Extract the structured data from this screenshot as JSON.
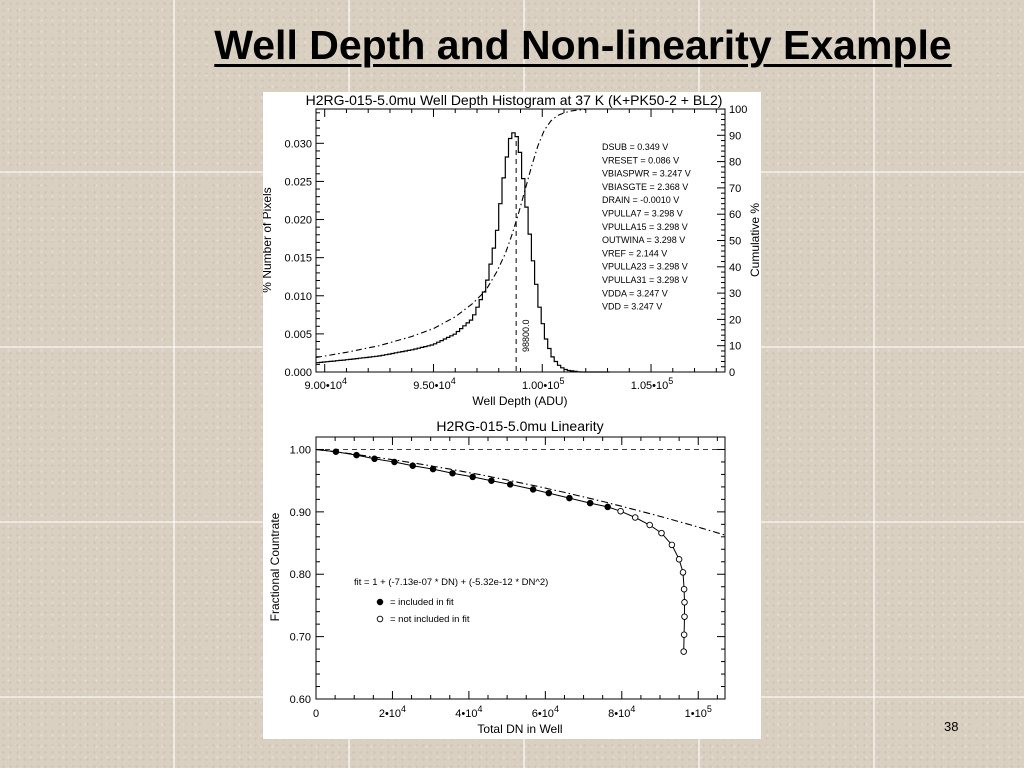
{
  "slide": {
    "title": "Well Depth and Non-linearity Example",
    "page_number": "38"
  },
  "chart_data": [
    {
      "type": "line",
      "title": "H2RG-015-5.0mu Well Depth Histogram at 37 K (K+PK50-2 + BL2)",
      "xlabel": "Well Depth (ADU)",
      "ylabel": "% Number of Pixels",
      "y2label": "Cumulative %",
      "xlim": [
        89600,
        108400
      ],
      "ylim": [
        0,
        0.0345
      ],
      "y2lim": [
        0,
        100
      ],
      "x_ticks": [
        {
          "value": 90000,
          "base": "9.00•10",
          "exp": "4"
        },
        {
          "value": 95000,
          "base": "9.50•10",
          "exp": "4"
        },
        {
          "value": 100000,
          "base": "1.00•10",
          "exp": "5"
        },
        {
          "value": 105000,
          "base": "1.05•10",
          "exp": "5"
        }
      ],
      "y_ticks": [
        "0.000",
        "0.005",
        "0.010",
        "0.015",
        "0.020",
        "0.025",
        "0.030"
      ],
      "y2_ticks": [
        "0",
        "10",
        "20",
        "30",
        "40",
        "50",
        "60",
        "70",
        "80",
        "90",
        "100"
      ],
      "histogram": {
        "x": [
          89600,
          91000,
          92500,
          94000,
          95000,
          96000,
          96800,
          97400,
          97900,
          98200,
          98500,
          98700,
          98900,
          99100,
          99300,
          99600,
          99900,
          100200,
          100500,
          100800,
          101000,
          101200,
          101500,
          101700
        ],
        "y": [
          0.0012,
          0.0016,
          0.0021,
          0.0029,
          0.0036,
          0.005,
          0.007,
          0.011,
          0.018,
          0.025,
          0.0305,
          0.0315,
          0.0305,
          0.026,
          0.021,
          0.014,
          0.008,
          0.004,
          0.0018,
          0.0008,
          0.0004,
          0.0002,
          0.0001,
          0.0
        ]
      },
      "cumulative": {
        "x": [
          89600,
          91000,
          92500,
          94000,
          95000,
          96000,
          96800,
          97400,
          97900,
          98300,
          98600,
          98900,
          99200,
          99500,
          99800,
          100100,
          100400,
          100700,
          101000,
          101300,
          101600,
          102000
        ],
        "y": [
          5.5,
          7.5,
          10.0,
          13.5,
          16.5,
          21.0,
          26.0,
          31.0,
          38.0,
          45.0,
          52.0,
          60.0,
          69.0,
          78.0,
          86.0,
          92.0,
          95.5,
          97.5,
          98.5,
          99.2,
          99.6,
          99.8
        ]
      },
      "marker": {
        "x": 98800,
        "label": "98800.0"
      },
      "parameters": [
        "DSUB = 0.349 V",
        "VRESET = 0.086 V",
        "VBIASPWR = 3.247 V",
        "VBIASGTE = 2.368 V",
        "DRAIN = -0.0010 V",
        "VPULLA7 = 3.298 V",
        "VPULLA15 = 3.298 V",
        "OUTWINA = 3.298 V",
        "VREF = 2.144 V",
        "VPULLA23 = 3.298 V",
        "VPULLA31 = 3.298 V",
        "VDDA = 3.247 V",
        "VDD = 3.247 V"
      ]
    },
    {
      "type": "scatter",
      "title": "H2RG-015-5.0mu Linearity",
      "xlabel": "Total DN in Well",
      "ylabel": "Fractional Countrate",
      "xlim": [
        0,
        107000
      ],
      "ylim": [
        0.6,
        1.02
      ],
      "x_ticks": [
        {
          "value": 0,
          "base": "0",
          "exp": ""
        },
        {
          "value": 20000,
          "base": "2•10",
          "exp": "4"
        },
        {
          "value": 40000,
          "base": "4•10",
          "exp": "4"
        },
        {
          "value": 60000,
          "base": "6•10",
          "exp": "4"
        },
        {
          "value": 80000,
          "base": "8•10",
          "exp": "4"
        },
        {
          "value": 100000,
          "base": "1•10",
          "exp": "5"
        }
      ],
      "y_ticks": [
        "1.00",
        "0.90",
        "0.80",
        "0.70",
        "0.60"
      ],
      "reference_y": 1.0,
      "fit": {
        "a": -7.13e-07,
        "b": -5.32e-12,
        "xmax": 107000
      },
      "fit_label": "fit = 1 + (-7.13e-07 * DN) + (-5.32e-12 * DN^2)",
      "legend": {
        "included": "= included in fit",
        "excluded": "= not included in fit"
      },
      "included": {
        "x": [
          5200,
          10600,
          15300,
          20500,
          25300,
          30600,
          35700,
          41000,
          45900,
          50800,
          56800,
          60900,
          66300,
          71700,
          76300
        ],
        "y": [
          0.9965,
          0.991,
          0.985,
          0.98,
          0.974,
          0.9685,
          0.962,
          0.956,
          0.95,
          0.944,
          0.936,
          0.93,
          0.922,
          0.914,
          0.908
        ]
      },
      "excluded": {
        "x": [
          79700,
          83500,
          87300,
          90400,
          93100,
          95000,
          96000,
          96300,
          96400,
          96400,
          96300,
          96200
        ],
        "y": [
          0.901,
          0.891,
          0.879,
          0.866,
          0.847,
          0.824,
          0.803,
          0.776,
          0.755,
          0.732,
          0.703,
          0.676
        ]
      }
    }
  ]
}
